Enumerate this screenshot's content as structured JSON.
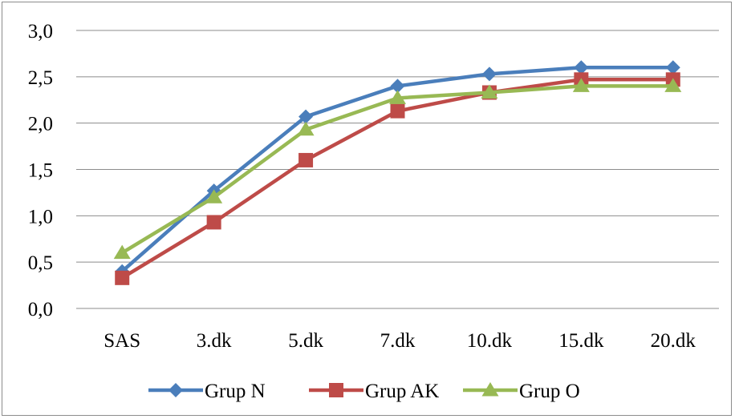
{
  "chart_data": {
    "type": "line",
    "title": "",
    "xlabel": "",
    "ylabel": "",
    "categories": [
      "SAS",
      "3.dk",
      "5.dk",
      "7.dk",
      "10.dk",
      "15.dk",
      "20.dk"
    ],
    "ylim": [
      0,
      3
    ],
    "yticks": [
      0,
      0.5,
      1,
      1.5,
      2,
      2.5,
      3
    ],
    "ytick_labels": [
      "0,0",
      "0,5",
      "1,0",
      "1,5",
      "2,0",
      "2,5",
      "3,0"
    ],
    "grid": "horizontal",
    "legend_position": "bottom",
    "series": [
      {
        "name": "Grup N",
        "color": "#4a7ebb",
        "marker": "diamond",
        "values": [
          0.4,
          1.27,
          2.07,
          2.4,
          2.53,
          2.6,
          2.6
        ]
      },
      {
        "name": "Grup AK",
        "color": "#be4b48",
        "marker": "square",
        "values": [
          0.33,
          0.93,
          1.6,
          2.13,
          2.33,
          2.47,
          2.47
        ]
      },
      {
        "name": "Grup O",
        "color": "#98b954",
        "marker": "triangle",
        "values": [
          0.6,
          1.2,
          1.93,
          2.27,
          2.33,
          2.4,
          2.4
        ]
      }
    ]
  }
}
